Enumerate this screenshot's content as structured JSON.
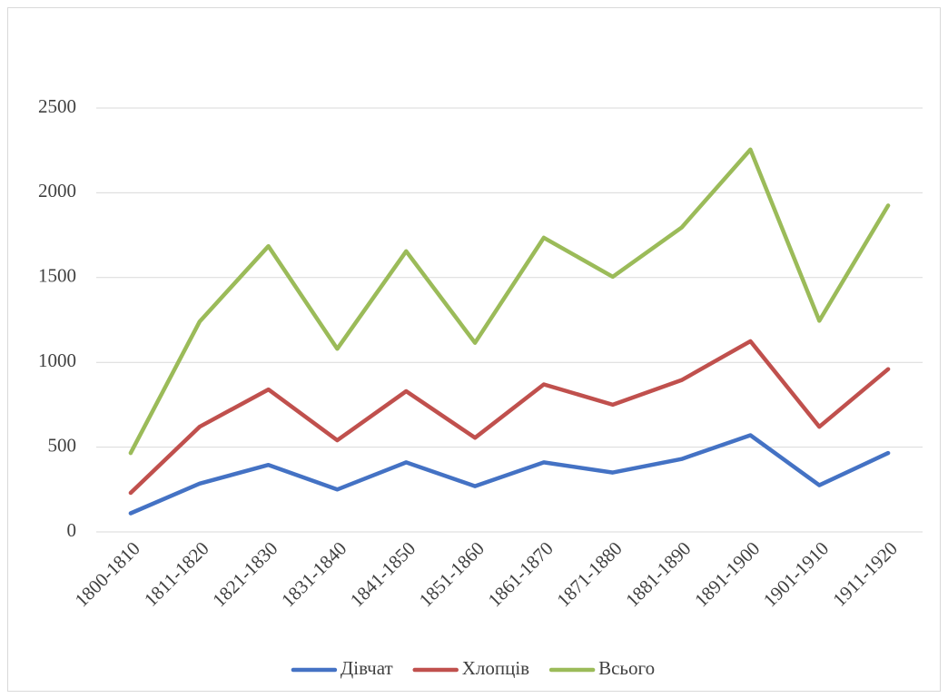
{
  "chart_data": {
    "type": "line",
    "categories": [
      "1800-1810",
      "1811-1820",
      "1821-1830",
      "1831-1840",
      "1841-1850",
      "1851-1860",
      "1861-1870",
      "1871-1880",
      "1881-1890",
      "1891-1900",
      "1901-1910",
      "1911-1920"
    ],
    "series": [
      {
        "name": "Дівчат",
        "color": "#4472c4",
        "values": [
          110,
          285,
          395,
          250,
          410,
          270,
          410,
          350,
          430,
          570,
          275,
          465
        ]
      },
      {
        "name": "Хлопців",
        "color": "#c0504d",
        "values": [
          230,
          620,
          840,
          540,
          830,
          555,
          870,
          750,
          895,
          1125,
          620,
          960
        ]
      },
      {
        "name": "Всього",
        "color": "#9bbb59",
        "values": [
          465,
          1240,
          1685,
          1080,
          1655,
          1115,
          1735,
          1505,
          1795,
          2255,
          1245,
          1925
        ]
      }
    ],
    "ylim": [
      0,
      2500
    ],
    "yticks": [
      0,
      500,
      1000,
      1500,
      2000,
      2500
    ],
    "grid": true,
    "legend": "bottom"
  }
}
